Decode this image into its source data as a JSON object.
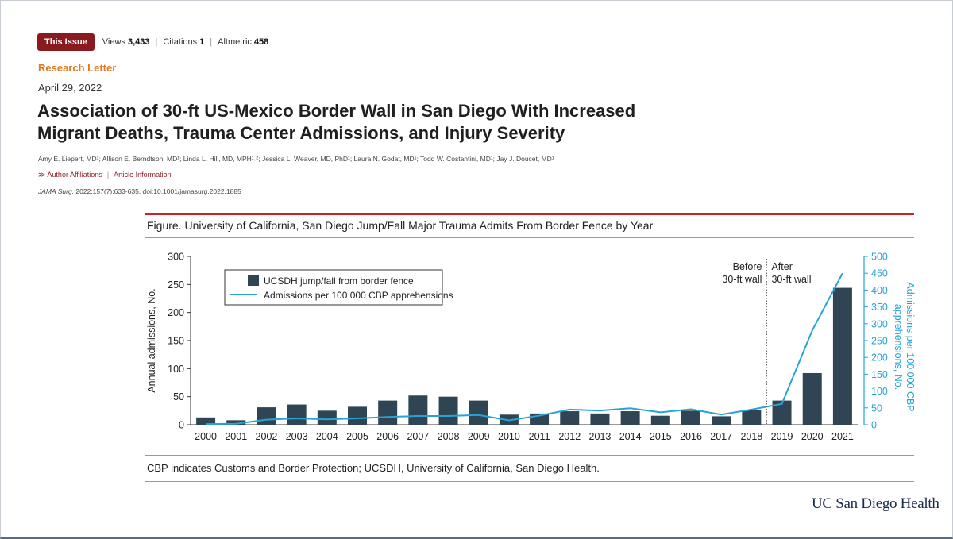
{
  "topbar": {
    "issue_badge": "This Issue",
    "views_label": "Views",
    "views_value": "3,433",
    "citations_label": "Citations",
    "citations_value": "1",
    "altmetric_label": "Altmetric",
    "altmetric_value": "458"
  },
  "article": {
    "section": "Research Letter",
    "date": "April 29, 2022",
    "title_line1": "Association of 30-ft US-Mexico Border Wall in San Diego With Increased",
    "title_line2": "Migrant Deaths, Trauma Center Admissions, and Injury Severity",
    "authors": "Amy E. Liepert, MD¹; Allison E. Berndtson, MD¹; Linda L. Hill, MD, MPH¹˒²; Jessica L. Weaver, MD, PhD¹; Laura N. Godat, MD¹; Todd W. Costantini, MD¹; Jay J. Doucet, MD¹",
    "affiliations_link": "≫ Author Affiliations",
    "article_info_link": "Article Information",
    "journal": "JAMA Surg.",
    "citation": " 2022;157(7):633-635. doi:10.1001/jamasurg.2022.1885"
  },
  "figure": {
    "title": "Figure. University of California, San Diego Jump/Fall Major Trauma Admits From Border Fence by Year",
    "note": "CBP indicates Customs and Border Protection; UCSDH, University of California, San Diego Health."
  },
  "brand": "UC San Diego Health",
  "colors": {
    "bar": "#2f4554",
    "line": "#29a3d6",
    "accent_red": "#c8222b",
    "badge": "#8b1a1f",
    "section_orange": "#e07b24"
  },
  "chart_data": {
    "type": "bar",
    "title": "Figure. University of California, San Diego Jump/Fall Major Trauma Admits From Border Fence by Year",
    "categories": [
      "2000",
      "2001",
      "2002",
      "2003",
      "2004",
      "2005",
      "2006",
      "2007",
      "2008",
      "2009",
      "2010",
      "2011",
      "2012",
      "2013",
      "2014",
      "2015",
      "2016",
      "2017",
      "2018",
      "2019",
      "2020",
      "2021"
    ],
    "series": [
      {
        "name": "UCSDH jump/fall from border fence",
        "type": "bar",
        "axis": "left",
        "values": [
          13,
          8,
          31,
          36,
          25,
          32,
          43,
          52,
          50,
          43,
          18,
          20,
          24,
          20,
          24,
          16,
          25,
          15,
          26,
          43,
          92,
          244
        ]
      },
      {
        "name": "Admissions per 100 000 CBP apprehensions",
        "type": "line",
        "axis": "right",
        "values": [
          2,
          3,
          15,
          19,
          16,
          19,
          23,
          26,
          26,
          29,
          13,
          27,
          45,
          42,
          49,
          37,
          46,
          30,
          45,
          62,
          280,
          450
        ]
      }
    ],
    "ylabel": "Annual admissions, No.",
    "ylabel_right": "Admissions per 100 000 CBP apprehensions, No.",
    "ylim": [
      0,
      300
    ],
    "ylim_right": [
      0,
      500
    ],
    "yticks": [
      0,
      50,
      100,
      150,
      200,
      250,
      300
    ],
    "yticks_right": [
      0,
      50,
      100,
      150,
      200,
      250,
      300,
      350,
      400,
      450,
      500
    ],
    "divider_after": "2018",
    "annotation_before": [
      "Before",
      "30-ft wall"
    ],
    "annotation_after": [
      "After",
      "30-ft wall"
    ],
    "legend_position": "top-left"
  }
}
